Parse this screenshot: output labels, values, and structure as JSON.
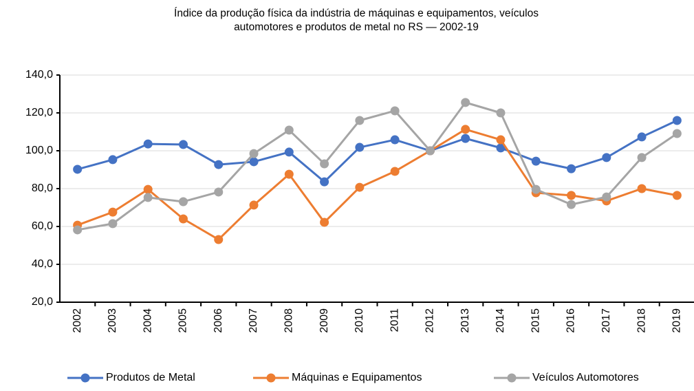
{
  "chart_data": {
    "type": "line",
    "title": [
      "Índice da produção física da indústria de máquinas e equipamentos, veículos",
      "automotores e produtos de metal no RS — 2002-19"
    ],
    "categories": [
      "2002",
      "2003",
      "2004",
      "2005",
      "2006",
      "2007",
      "2008",
      "2009",
      "2010",
      "2011",
      "2012",
      "2013",
      "2014",
      "2015",
      "2016",
      "2017",
      "2018",
      "2019"
    ],
    "series": [
      {
        "name": "Produtos de Metal",
        "color": "#4472c4",
        "values": [
          90.2,
          95.3,
          103.6,
          103.3,
          92.7,
          94.2,
          99.3,
          83.6,
          101.8,
          105.8,
          100,
          106.5,
          101.5,
          94.5,
          90.5,
          96.4,
          107.3,
          116
        ]
      },
      {
        "name": "Máquinas e Equipamentos",
        "color": "#ed7d31",
        "values": [
          60.7,
          67.6,
          79.6,
          64,
          53.1,
          71.3,
          87.6,
          62.2,
          80.7,
          89.1,
          100,
          111.3,
          105.8,
          77.8,
          76.4,
          73.5,
          80,
          76.4
        ]
      },
      {
        "name": "Veículos Automotores",
        "color": "#a5a5a5",
        "values": [
          58.2,
          61.5,
          75.3,
          73.1,
          78.2,
          98.5,
          110.9,
          93.1,
          116,
          121.1,
          100,
          125.5,
          120,
          79.6,
          71.6,
          75.6,
          96.4,
          109.1
        ]
      }
    ],
    "ylim": [
      20,
      140
    ],
    "yticks": [
      {
        "value": 20,
        "label": "20,0"
      },
      {
        "value": 40,
        "label": "40,0"
      },
      {
        "value": 60,
        "label": "60,0"
      },
      {
        "value": 80,
        "label": "80,0"
      },
      {
        "value": 100,
        "label": "100,0"
      },
      {
        "value": 120,
        "label": "120,0"
      },
      {
        "value": 140,
        "label": "140,0"
      }
    ],
    "grid": true,
    "legend": "bottom"
  }
}
